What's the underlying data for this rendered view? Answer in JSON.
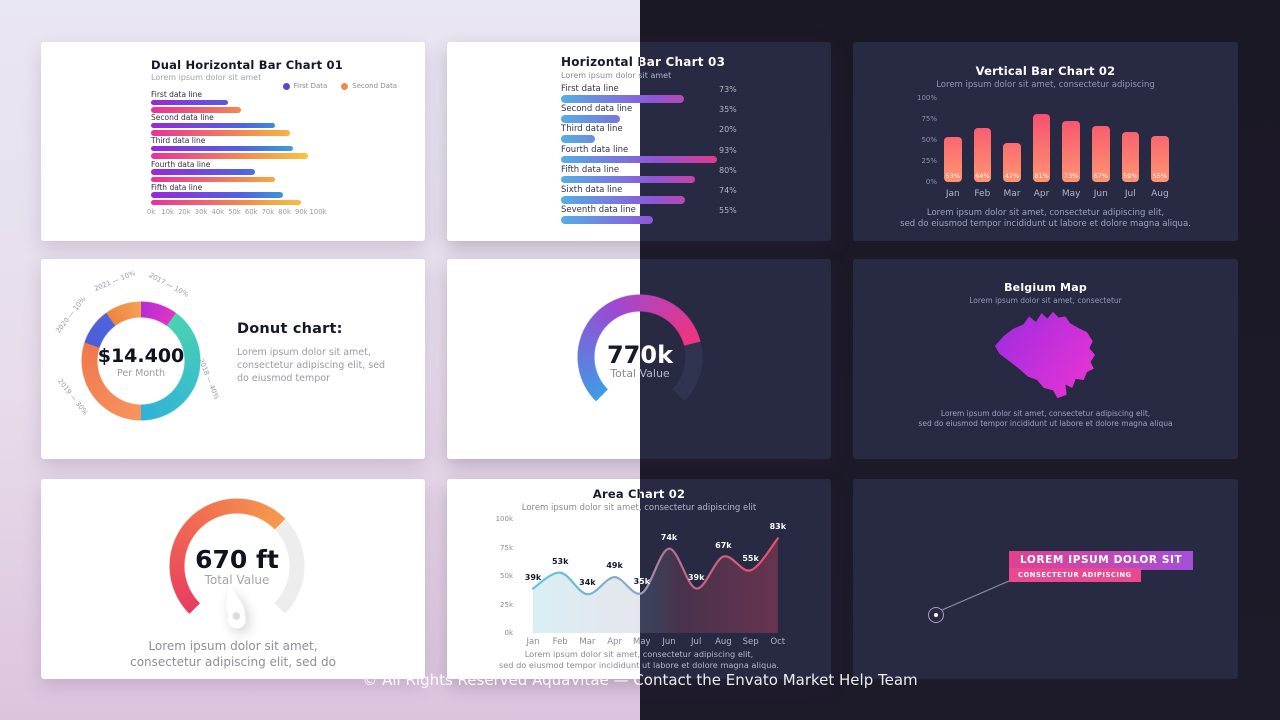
{
  "page": {
    "footer": "© All Rights Reserved AquaVitae — Contact the Envato Market Help Team"
  },
  "palette": {
    "page_bg_left_top": "#e9e7f2",
    "page_bg_left_bottom": "#ddc4de",
    "page_bg_right": "#1c1927",
    "card_light": "#ffffff",
    "card_dark": "#272a42",
    "dual_series1_gradient": [
      "#9a27d8",
      "#4f63e2",
      "#2fc0cc"
    ],
    "dual_series2_gradient": [
      "#ea309b",
      "#f28a50",
      "#f8cd3e"
    ],
    "legend_dot_first": "#5b43d8",
    "legend_dot_second": "#ef8a52",
    "hbar_gradient": [
      "#55aee6",
      "#8f55d8",
      "#f0357e"
    ],
    "vbar_gradient": [
      "#ff9472",
      "#f4406e"
    ],
    "donut_segments": [
      [
        "#b62bd6",
        "#e035c2"
      ],
      [
        "#4ad2b2",
        "#2fb2d8"
      ],
      [
        "#f8935f",
        "#ef784d"
      ],
      [
        "#4a5ed8",
        "#5064de"
      ],
      [
        "#ee8440",
        "#f2a156"
      ]
    ],
    "gauge_770": {
      "start": "#3d9ce4",
      "mid": "#9a4ad4",
      "end": "#f2337e",
      "track": "#313450"
    },
    "gauge_670": {
      "start": "#e83c60",
      "mid": "#f06a52",
      "end": "#f59b4d",
      "track": "#ededed"
    },
    "area_line": [
      "#5bc8d8",
      "#ea4f70"
    ],
    "map_gradient": [
      "#9c2be0",
      "#e133d6"
    ],
    "callout_gradient": [
      "#e0418f",
      "#a44fd8"
    ],
    "callout_secondary": "#ea4890"
  },
  "chart_data": [
    {
      "id": "dual_horizontal_bar_01",
      "type": "bar",
      "orientation": "horizontal",
      "title": "Dual Horizontal Bar Chart 01",
      "subtitle": "Lorem ipsum dolor sit amet",
      "categories": [
        "First data line",
        "Second data line",
        "Third data line",
        "Fourth data line",
        "Fifth data line"
      ],
      "series": [
        {
          "name": "First Data",
          "values": [
            46,
            74,
            85,
            62,
            79
          ]
        },
        {
          "name": "Second Data",
          "values": [
            54,
            83,
            94,
            74,
            90
          ]
        }
      ],
      "unit": "k",
      "xlim": [
        0,
        100
      ],
      "xticks": [
        "0k",
        "10k",
        "20k",
        "30k",
        "40k",
        "50k",
        "60k",
        "70k",
        "80k",
        "90k",
        "100k"
      ],
      "legend_position": "top-right"
    },
    {
      "id": "horizontal_bar_03",
      "type": "bar",
      "orientation": "horizontal",
      "title": "Horizontal Bar Chart 03",
      "subtitle": "Lorem ipsum dolor sit amet",
      "categories": [
        "First data line",
        "Second data line",
        "Third data line",
        "Fourth data line",
        "Fifth data line",
        "Sixth data line",
        "Seventh data line"
      ],
      "values": [
        73,
        35,
        20,
        93,
        80,
        74,
        55
      ],
      "unit": "%",
      "xlim": [
        0,
        100
      ]
    },
    {
      "id": "vertical_bar_02",
      "type": "bar",
      "title": "Vertical Bar Chart 02",
      "subtitle": "Lorem ipsum dolor sit amet, consectetur adipiscing",
      "categories": [
        "Jan",
        "Feb",
        "Mar",
        "Apr",
        "May",
        "Jun",
        "Jul",
        "Aug"
      ],
      "values": [
        53,
        64,
        47,
        81,
        73,
        67,
        59,
        55
      ],
      "unit": "%",
      "ylim": [
        0,
        100
      ],
      "yticks": [
        "100%",
        "75%",
        "50%",
        "25%",
        "0%"
      ],
      "caption": "Lorem ipsum dolor sit amet, consectetur adipiscing elit,\nsed do eiusmod tempor incididunt ut labore et dolore magna aliqua."
    },
    {
      "id": "donut_chart",
      "type": "pie",
      "title": "Donut chart:",
      "description": "Lorem ipsum dolor sit amet, consectetur adipiscing elit, sed do eiusmod tempor",
      "center_value": "$14.400",
      "center_label": "Per Month",
      "labels": [
        "2017 — 10%",
        "2018 — 40%",
        "2019 — 30%",
        "2020 — 10%",
        "2021 — 10%"
      ],
      "values": [
        10,
        40,
        30,
        10,
        10
      ]
    },
    {
      "id": "gauge_770",
      "type": "gauge",
      "value_label": "770k",
      "sub_label": "Total Value",
      "fraction": 0.78
    },
    {
      "id": "belgium_map",
      "type": "map",
      "title": "Belgium Map",
      "subtitle": "Lorem ipsum dolor sit amet, consectetur",
      "caption": "Lorem ipsum dolor sit amet, consectetur adipiscing elit,\nsed do eiusmod tempor incididunt ut labore et dolore magna aliqua"
    },
    {
      "id": "gauge_670",
      "type": "gauge",
      "value_label": "670 ft",
      "sub_label": "Total Value",
      "fraction": 0.67,
      "caption": "Lorem ipsum dolor sit amet,\nconsectetur adipiscing elit, sed do"
    },
    {
      "id": "area_chart_02",
      "type": "area",
      "title": "Area Chart 02",
      "subtitle": "Lorem ipsum dolor sit amet, consectetur adipiscing elit",
      "x": [
        "Jan",
        "Feb",
        "Mar",
        "Apr",
        "May",
        "Jun",
        "Jul",
        "Aug",
        "Sep",
        "Oct"
      ],
      "values": [
        39,
        53,
        34,
        49,
        35,
        74,
        39,
        67,
        55,
        83
      ],
      "unit": "k",
      "ylim": [
        0,
        100
      ],
      "yticks": [
        "100k",
        "75k",
        "50k",
        "25k",
        "0k"
      ],
      "caption": "Lorem ipsum dolor sit amet, consectetur adipiscing elit,\nsed do eiusmod tempor incididunt ut labore et dolore magna aliqua."
    },
    {
      "id": "callout_annotation",
      "type": "annotation",
      "label_primary": "LOREM IPSUM DOLOR SIT",
      "label_secondary": "CONSECTETUR ADIPISCING"
    }
  ]
}
